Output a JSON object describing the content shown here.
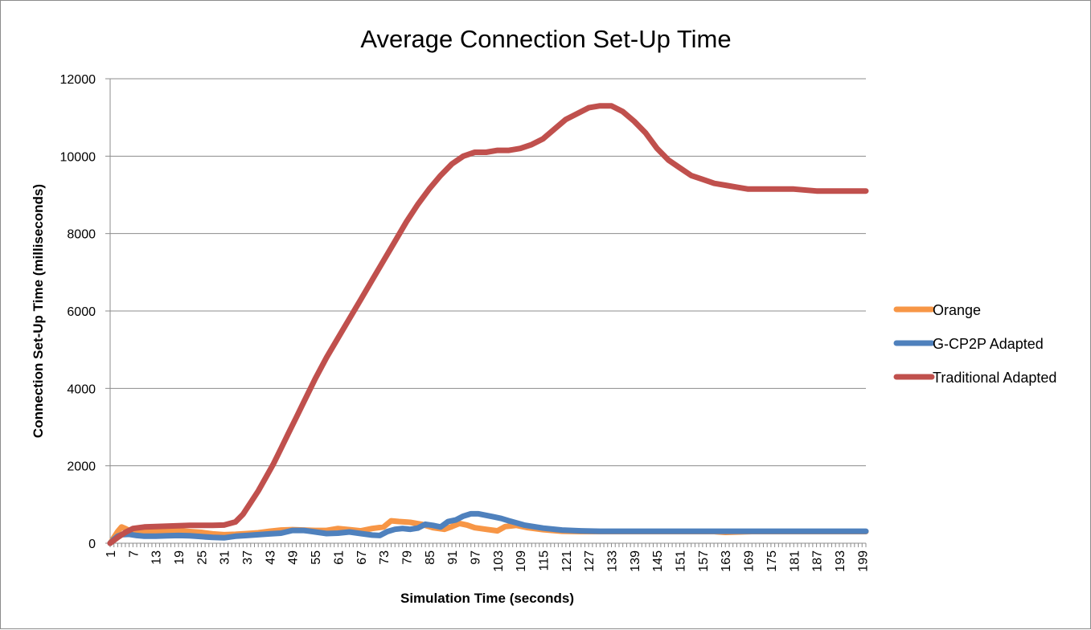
{
  "chart_data": {
    "type": "line",
    "title": "Average Connection Set-Up Time",
    "xlabel": "Simulation Time (seconds)",
    "ylabel": "Connection Set-Up Time (milliseconds)",
    "xlim": [
      1,
      200
    ],
    "ylim": [
      0,
      12000
    ],
    "y_ticks": [
      0,
      2000,
      4000,
      6000,
      8000,
      10000,
      12000
    ],
    "x_ticks": [
      1,
      7,
      13,
      19,
      25,
      31,
      37,
      43,
      49,
      55,
      61,
      67,
      73,
      79,
      85,
      91,
      97,
      103,
      109,
      115,
      121,
      127,
      133,
      139,
      145,
      151,
      157,
      163,
      169,
      175,
      181,
      187,
      193,
      199
    ],
    "grid": "horizontal",
    "legend_position": "right",
    "series": [
      {
        "name": "Orange",
        "color": "#F79646",
        "x": [
          1,
          2,
          3,
          4,
          5,
          6,
          8,
          10,
          13,
          16,
          19,
          22,
          25,
          28,
          31,
          34,
          37,
          40,
          43,
          46,
          49,
          52,
          55,
          58,
          61,
          64,
          67,
          70,
          73,
          75,
          77,
          80,
          83,
          86,
          89,
          91,
          93,
          95,
          97,
          100,
          103,
          105,
          108,
          111,
          115,
          120,
          125,
          130,
          140,
          150,
          160,
          163,
          170,
          180,
          190,
          200
        ],
        "values": [
          0,
          150,
          300,
          420,
          380,
          330,
          300,
          300,
          300,
          320,
          320,
          300,
          280,
          240,
          220,
          230,
          250,
          270,
          310,
          340,
          350,
          340,
          330,
          330,
          380,
          350,
          320,
          380,
          420,
          580,
          560,
          540,
          490,
          400,
          360,
          430,
          510,
          470,
          400,
          360,
          320,
          430,
          460,
          400,
          350,
          310,
          300,
          300,
          300,
          300,
          300,
          280,
          300,
          300,
          300,
          300
        ]
      },
      {
        "name": "G-CP2P Adapted",
        "color": "#4F81BD",
        "x": [
          1,
          2,
          3,
          4,
          6,
          8,
          10,
          13,
          16,
          19,
          22,
          25,
          28,
          31,
          34,
          37,
          40,
          43,
          46,
          49,
          52,
          55,
          58,
          61,
          64,
          67,
          70,
          72,
          74,
          76,
          78,
          80,
          82,
          84,
          86,
          88,
          90,
          92,
          94,
          96,
          98,
          100,
          102,
          104,
          106,
          110,
          115,
          120,
          125,
          130,
          140,
          150,
          160,
          170,
          180,
          190,
          200
        ],
        "values": [
          0,
          100,
          180,
          220,
          230,
          200,
          180,
          180,
          190,
          200,
          190,
          170,
          150,
          140,
          180,
          200,
          220,
          240,
          260,
          330,
          330,
          290,
          250,
          260,
          290,
          250,
          210,
          200,
          300,
          360,
          380,
          360,
          390,
          490,
          460,
          420,
          560,
          600,
          700,
          760,
          760,
          720,
          680,
          640,
          580,
          470,
          390,
          340,
          320,
          310,
          310,
          310,
          310,
          310,
          310,
          310,
          310
        ]
      },
      {
        "name": "Traditional Adapted",
        "color": "#C0504D",
        "x": [
          1,
          3,
          5,
          7,
          10,
          13,
          16,
          19,
          22,
          25,
          28,
          31,
          34,
          36,
          38,
          40,
          42,
          44,
          46,
          48,
          50,
          52,
          55,
          58,
          61,
          64,
          67,
          70,
          73,
          76,
          79,
          82,
          85,
          88,
          91,
          94,
          97,
          100,
          103,
          106,
          109,
          112,
          115,
          118,
          121,
          124,
          127,
          130,
          133,
          136,
          139,
          142,
          145,
          148,
          151,
          154,
          157,
          160,
          163,
          166,
          169,
          175,
          181,
          187,
          193,
          200
        ],
        "values": [
          0,
          150,
          280,
          380,
          420,
          430,
          440,
          450,
          460,
          460,
          460,
          470,
          550,
          750,
          1050,
          1350,
          1700,
          2050,
          2450,
          2850,
          3250,
          3650,
          4250,
          4800,
          5300,
          5800,
          6300,
          6800,
          7300,
          7800,
          8300,
          8750,
          9150,
          9500,
          9800,
          10000,
          10100,
          10100,
          10150,
          10150,
          10200,
          10300,
          10450,
          10700,
          10950,
          11100,
          11250,
          11300,
          11300,
          11150,
          10900,
          10600,
          10200,
          9900,
          9700,
          9500,
          9400,
          9300,
          9250,
          9200,
          9150,
          9150,
          9150,
          9100,
          9100,
          9100
        ]
      }
    ]
  }
}
